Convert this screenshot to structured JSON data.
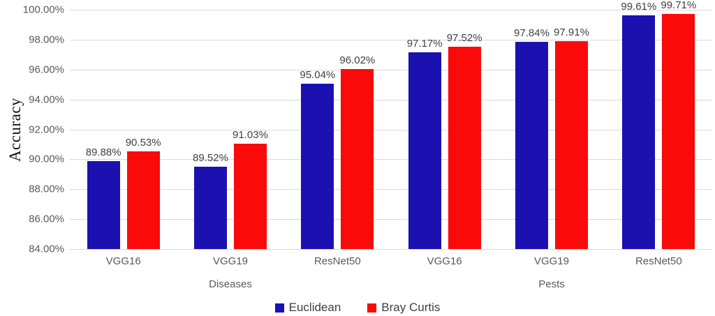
{
  "chart_data": {
    "type": "bar",
    "title": "",
    "ylabel": "Accuracy",
    "xlabel": "",
    "ylim": [
      84,
      100
    ],
    "grid": true,
    "legend_position": "bottom",
    "yticks": [
      {
        "label": "100.00%",
        "value": 100
      },
      {
        "label": "98.00%",
        "value": 98
      },
      {
        "label": "96.00%",
        "value": 96
      },
      {
        "label": "94.00%",
        "value": 94
      },
      {
        "label": "92.00%",
        "value": 92
      },
      {
        "label": "90.00%",
        "value": 90
      },
      {
        "label": "88.00%",
        "value": 88
      },
      {
        "label": "86.00%",
        "value": 86
      },
      {
        "label": "84.00%",
        "value": 84
      }
    ],
    "categories": [
      "VGG16",
      "VGG19",
      "ResNet50",
      "VGG16",
      "VGG19",
      "ResNet50"
    ],
    "group_labels": [
      "Diseases",
      "Pests"
    ],
    "series": [
      {
        "name": "Euclidean",
        "color": "#1b11b1",
        "values": [
          89.88,
          89.52,
          95.04,
          97.17,
          97.84,
          99.61
        ],
        "labels": [
          "89.88%",
          "89.52%",
          "95.04%",
          "97.17%",
          "97.84%",
          "99.61%"
        ]
      },
      {
        "name": "Bray Curtis",
        "color": "#fb0a0a",
        "values": [
          90.53,
          91.03,
          96.02,
          97.52,
          97.91,
          99.71
        ],
        "labels": [
          "90.53%",
          "91.03%",
          "96.02%",
          "97.52%",
          "97.91%",
          "99.71%"
        ]
      }
    ],
    "colors": {
      "gridline": "#d9d9d9",
      "tick_text": "#595959",
      "data_label_text": "#3f3f3f",
      "legend_text": "#404040",
      "axis_title_text": "#111111"
    }
  }
}
